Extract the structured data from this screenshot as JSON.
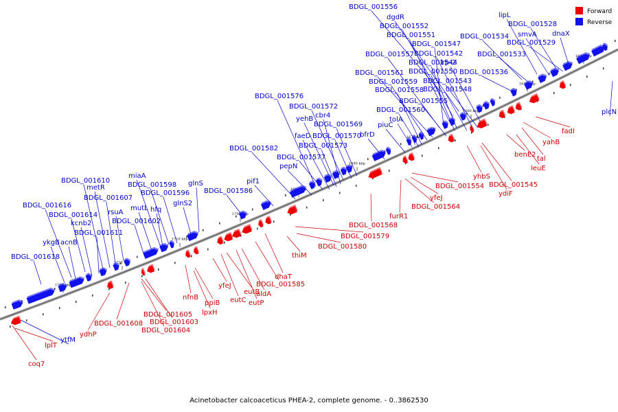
{
  "caption": "Acinetobacter calcoaceticus PHEA-2, complete genome. - 0..3862530",
  "legend": [
    {
      "label": "Forward",
      "color": "#ee0000"
    },
    {
      "label": "Reverse",
      "color": "#1111ee"
    }
  ],
  "colors": {
    "forward": "#ee0000",
    "reverse": "#1111ee",
    "forward_label": "#cc0000",
    "reverse_label": "#0000cc",
    "backbone": "#888888"
  },
  "kbp_marks": [
    "1730 kbp",
    "1720 kbp",
    "1710 kbp",
    "1700 kbp",
    "1690 kbp",
    "1680 kbp",
    "1670 kbp",
    "1660 kbp",
    "1650 kbp",
    "1640 kbp"
  ],
  "reverse_labels": [
    "BDGL_001556",
    "dgdR",
    "BDGL_001552",
    "BDGL_001551",
    "BDGL_001547",
    "BDGL_001557",
    "BDGL_001542",
    "BDGL_001544",
    "lrp-2",
    "BDGL_001550",
    "BDGL_001561",
    "BDGL_001559",
    "BDGL_001543",
    "BDGL_001558",
    "BDGL_001548",
    "BDGL_001555",
    "BDGL_001560",
    "tolA",
    "piuC",
    "bfrD",
    "lipL",
    "BDGL_001528",
    "smvA",
    "dnaX",
    "BDGL_001529",
    "BDGL_001534",
    "BDGL_001533",
    "BDGL_001536",
    "BDGL_001576",
    "BDGL_001572",
    "yehB",
    "cbr4",
    "BDGL_001569",
    "faeD",
    "BDGL_001570",
    "BDGL_001573",
    "BDGL_001582",
    "BDGL_001577",
    "pepN",
    "pif1",
    "BDGL_001586",
    "glnS",
    "glnS2",
    "miaA",
    "BDGL_001598",
    "BDGL_001596",
    "hfq",
    "mutL",
    "BDGL_001602",
    "rsuA",
    "BDGL_001607",
    "metR",
    "BDGL_001610",
    "BDGL_001614",
    "BDGL_001616",
    "kcnb2",
    "acnB",
    "ykgB",
    "BDGL_001611",
    "BDGL_001618",
    "ytfM",
    "plcN"
  ],
  "forward_labels": [
    "fadI",
    "yahB",
    "tal",
    "benE2",
    "leuE",
    "BDGL_001545",
    "ydiF",
    "yhbS",
    "BDGL_001554",
    "yfeJ",
    "BDGL_001564",
    "furR1",
    "BDGL_001568",
    "BDGL_001579",
    "BDGL_001580",
    "thiM",
    "dhaT",
    "BDGL_001585",
    "aldA",
    "eutP",
    "eutB",
    "eutC",
    "yfeJ",
    "ppiB",
    "lpxH",
    "nfnB",
    "BDGL_001605",
    "BDGL_001603",
    "BDGL_001604",
    "BDGL_001608",
    "ydhP",
    "lplT",
    "coq7"
  ]
}
